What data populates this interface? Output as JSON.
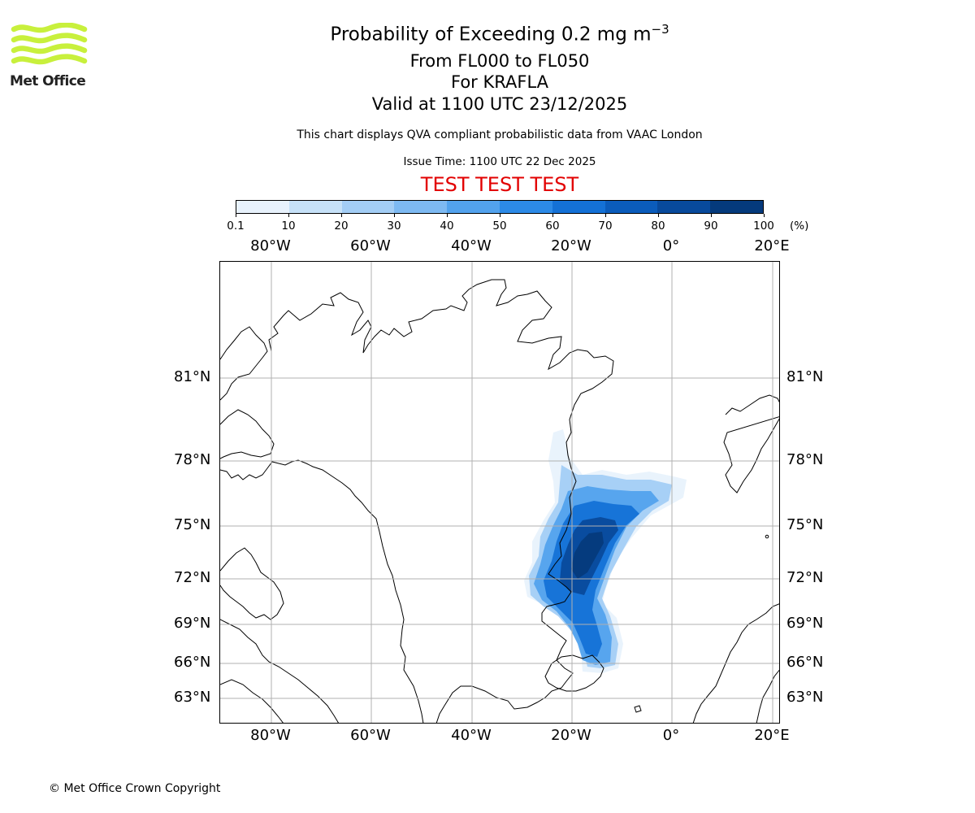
{
  "logo": {
    "text": "Met Office",
    "color": "#c8f03c"
  },
  "title": {
    "main": "Probability of Exceeding 0.2 mg m",
    "main_sup": "−3",
    "levels": "From FL000 to FL050",
    "volcano": "For KRAFLA",
    "valid": "Valid at 1100 UTC 23/12/2025",
    "note": "This chart displays QVA compliant probabilistic data from VAAC London",
    "issue": "Issue Time: 1100 UTC 22 Dec 2025",
    "test": "TEST TEST TEST"
  },
  "colorbar": {
    "ticks": [
      "0.1",
      "10",
      "20",
      "30",
      "40",
      "50",
      "60",
      "70",
      "80",
      "90",
      "100"
    ],
    "unit": "(%)",
    "colors": [
      "#e8f2fc",
      "#c6e1f8",
      "#a3cdf5",
      "#7db9f2",
      "#52a2ed",
      "#2c8ae7",
      "#1471d6",
      "#0b5cbb",
      "#084a9c",
      "#053a7c",
      "#032a5b"
    ]
  },
  "map": {
    "lon_labels": [
      "80°W",
      "60°W",
      "40°W",
      "20°W",
      "0°",
      "20°E"
    ],
    "lat_labels": [
      "81°N",
      "78°N",
      "75°N",
      "72°N",
      "69°N",
      "66°N",
      "63°N"
    ],
    "grid_color": "#b0b0b0"
  },
  "footer": {
    "copyright": "© Met Office Crown Copyright"
  }
}
